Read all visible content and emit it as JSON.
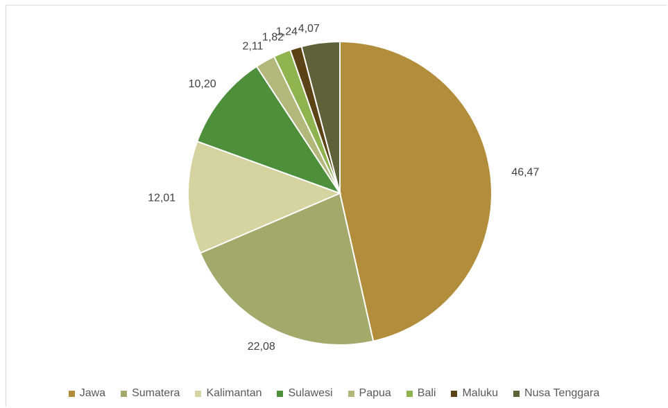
{
  "chart_data": {
    "type": "pie",
    "title": "",
    "categories": [
      "Jawa",
      "Sumatera",
      "Kalimantan",
      "Sulawesi",
      "Papua",
      "Bali",
      "Maluku",
      "Nusa Tenggara"
    ],
    "values": [
      46.47,
      22.08,
      12.01,
      10.2,
      2.11,
      1.82,
      1.24,
      4.07
    ],
    "value_labels": [
      "46,47",
      "22,08",
      "12,01",
      "10,20",
      "2,11",
      "1,82",
      "1,24",
      "4,07"
    ],
    "colors": [
      "#b28d3c",
      "#a3a86b",
      "#d5d39f",
      "#4e8f3c",
      "#b4b77c",
      "#8fb34e",
      "#5b4316",
      "#5f6139"
    ],
    "legend_position": "bottom",
    "start_angle": "12 o'clock",
    "direction": "clockwise"
  }
}
